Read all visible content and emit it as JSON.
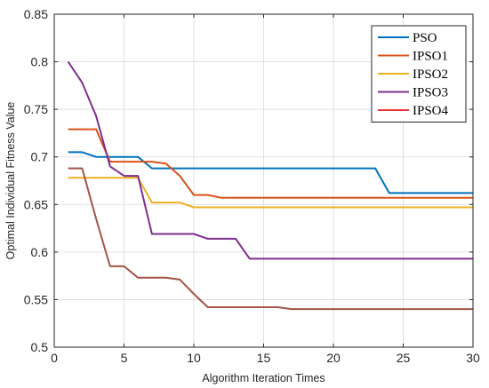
{
  "chart_data": {
    "type": "line",
    "title": "",
    "xlabel": "Algorithm Iteration Times",
    "ylabel": "Optimal Individual Fitness Value",
    "xlim": [
      0,
      30
    ],
    "ylim": [
      0.5,
      0.85
    ],
    "xticks": [
      "0",
      "5",
      "10",
      "15",
      "20",
      "25",
      "30"
    ],
    "yticks": [
      "0.5",
      "0.55",
      "0.6",
      "0.65",
      "0.7",
      "0.75",
      "0.8",
      "0.85"
    ],
    "grid": true,
    "legend_position": "top-right",
    "x": [
      1,
      2,
      3,
      4,
      5,
      6,
      7,
      8,
      9,
      10,
      11,
      12,
      13,
      14,
      15,
      16,
      17,
      18,
      19,
      20,
      21,
      22,
      23,
      24,
      25,
      26,
      27,
      28,
      29,
      30
    ],
    "series": [
      {
        "name": "PSO",
        "color": "#0072BD",
        "values": [
          0.705,
          0.705,
          0.7,
          0.7,
          0.7,
          0.7,
          0.688,
          0.688,
          0.688,
          0.688,
          0.688,
          0.688,
          0.688,
          0.688,
          0.688,
          0.688,
          0.688,
          0.688,
          0.688,
          0.688,
          0.688,
          0.688,
          0.688,
          0.662,
          0.662,
          0.662,
          0.662,
          0.662,
          0.662,
          0.662
        ]
      },
      {
        "name": "IPSO1",
        "color": "#D95319",
        "values": [
          0.729,
          0.729,
          0.729,
          0.695,
          0.695,
          0.695,
          0.695,
          0.693,
          0.68,
          0.66,
          0.66,
          0.657,
          0.657,
          0.657,
          0.657,
          0.657,
          0.657,
          0.657,
          0.657,
          0.657,
          0.657,
          0.657,
          0.657,
          0.657,
          0.657,
          0.657,
          0.657,
          0.657,
          0.657,
          0.657
        ]
      },
      {
        "name": "IPSO2",
        "color": "#EDB120",
        "values": [
          0.678,
          0.678,
          0.678,
          0.678,
          0.678,
          0.678,
          0.652,
          0.652,
          0.652,
          0.647,
          0.647,
          0.647,
          0.647,
          0.647,
          0.647,
          0.647,
          0.647,
          0.647,
          0.647,
          0.647,
          0.647,
          0.647,
          0.647,
          0.647,
          0.647,
          0.647,
          0.647,
          0.647,
          0.647,
          0.647
        ]
      },
      {
        "name": "IPSO3",
        "color": "#7E2F8E",
        "values": [
          0.8,
          0.778,
          0.743,
          0.69,
          0.68,
          0.68,
          0.619,
          0.619,
          0.619,
          0.619,
          0.614,
          0.614,
          0.614,
          0.593,
          0.593,
          0.593,
          0.593,
          0.593,
          0.593,
          0.593,
          0.593,
          0.593,
          0.593,
          0.593,
          0.593,
          0.593,
          0.593,
          0.593,
          0.593,
          0.593
        ]
      },
      {
        "name": "IPSO4",
        "color": "#E8383D",
        "trace_color": "#A2574A",
        "values": [
          0.688,
          0.688,
          0.635,
          0.585,
          0.585,
          0.573,
          0.573,
          0.573,
          0.571,
          0.556,
          0.542,
          0.542,
          0.542,
          0.542,
          0.542,
          0.542,
          0.54,
          0.54,
          0.54,
          0.54,
          0.54,
          0.54,
          0.54,
          0.54,
          0.54,
          0.54,
          0.54,
          0.54,
          0.54,
          0.54
        ]
      }
    ]
  }
}
